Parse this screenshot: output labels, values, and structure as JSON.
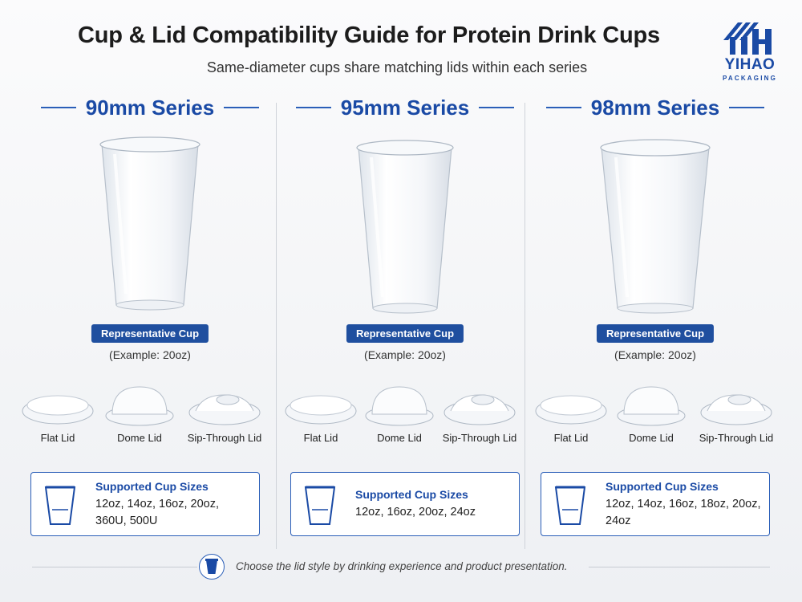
{
  "header": {
    "title": "Cup & Lid Compatibility Guide for Protein Drink Cups",
    "subtitle": "Same-diameter cups share matching lids within each series"
  },
  "logo": {
    "brand": "YIHAO",
    "sub": "PACKAGING",
    "icon": "yihao-logo-icon"
  },
  "colors": {
    "accent": "#1a4aa5",
    "badge": "#1f4f9f",
    "rule": "#2b5fb8"
  },
  "series": [
    {
      "name": "90mm Series",
      "badge": "Representative Cup",
      "example": "(Example: 20oz)",
      "lids": [
        "Flat Lid",
        "Dome Lid",
        "Sip-Through Lid"
      ],
      "sizes_title": "Supported Cup Sizes",
      "sizes": "12oz, 14oz, 16oz, 20oz, 360U, 500U"
    },
    {
      "name": "95mm Series",
      "badge": "Representative Cup",
      "example": "(Example: 20oz)",
      "lids": [
        "Flat Lid",
        "Dome Lid",
        "Sip-Through Lid"
      ],
      "sizes_title": "Supported Cup Sizes",
      "sizes": "12oz, 16oz, 20oz, 24oz"
    },
    {
      "name": "98mm Series",
      "badge": "Representative Cup",
      "example": "(Example: 20oz)",
      "lids": [
        "Flat Lid",
        "Dome Lid",
        "Sip-Through Lid"
      ],
      "sizes_title": "Supported Cup Sizes",
      "sizes": "12oz, 14oz, 16oz, 18oz, 20oz, 24oz"
    }
  ],
  "footer": {
    "text": "Choose the lid style by drinking experience and product presentation.",
    "icon": "cup-icon"
  }
}
